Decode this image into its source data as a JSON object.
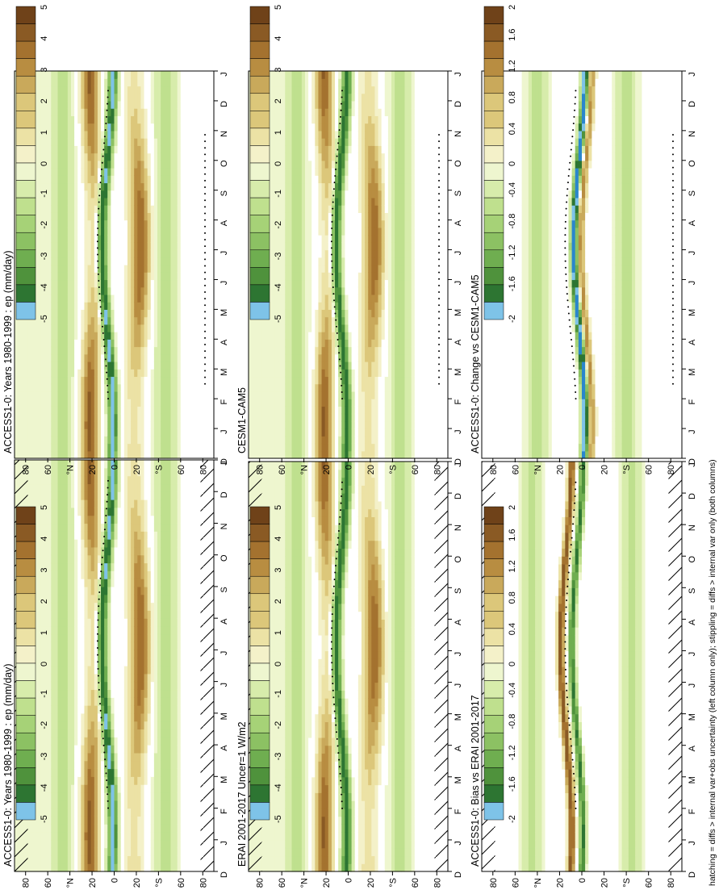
{
  "figure": {
    "footnote": "hatching = diffs > internal var+obs uncertainty (left column only); stippling = diffs > internal var only (both columns)"
  },
  "colors": {
    "positive_ramp": [
      "#f4f1c9",
      "#ece2a5",
      "#dcc77a",
      "#c9a95b",
      "#b88d41",
      "#a4722f",
      "#8a5a24",
      "#6f4219"
    ],
    "negative_ramp": [
      "#eef6cf",
      "#d7ecab",
      "#bfe08e",
      "#a6d277",
      "#8cc163",
      "#6fae50",
      "#4f923c",
      "#2d7532",
      "#7ec3e8",
      "#2a86cc"
    ],
    "white": "#ffffff",
    "near_white": "#f5f6fb"
  },
  "chart_data": [
    {
      "id": "p1",
      "type": "heatmap",
      "title": "ACCESS1-0: Years 1980-1999 : ep (mm/day)",
      "x": [
        "D",
        "J",
        "F",
        "M",
        "A",
        "M",
        "J",
        "J",
        "A",
        "S",
        "O",
        "N",
        "D",
        "J"
      ],
      "y_ticks": [
        "80",
        "60",
        "°N",
        "20",
        "0",
        "20",
        "°S",
        "60",
        "80"
      ],
      "ylim": [
        -90,
        90
      ],
      "colorbar": {
        "labels": [
          "5",
          "4",
          "3",
          "2",
          "1",
          "0",
          "-1",
          "-2",
          "-3",
          "-4",
          "-5"
        ],
        "range": [
          -5,
          5
        ]
      },
      "hatching": true,
      "stippling": true,
      "scale": 1
    },
    {
      "id": "p2",
      "type": "heatmap",
      "title": "ACCESS1-0: Years 1980-1999 : ep (mm/day)",
      "x": [
        "D",
        "J",
        "F",
        "M",
        "A",
        "M",
        "J",
        "J",
        "A",
        "S",
        "O",
        "N",
        "D",
        "J"
      ],
      "y_ticks": [
        "80",
        "60",
        "°N",
        "20",
        "0",
        "20",
        "°S",
        "60",
        "80"
      ],
      "ylim": [
        -90,
        90
      ],
      "colorbar": {
        "labels": [
          "5",
          "4",
          "3",
          "2",
          "1",
          "0",
          "-1",
          "-2",
          "-3",
          "-4",
          "-5"
        ],
        "range": [
          -5,
          5
        ]
      },
      "hatching": false,
      "stippling": true,
      "scale": 1
    },
    {
      "id": "p3",
      "type": "heatmap",
      "title": "ERAI 2001-2017 Uncer=1 W/m2",
      "x": [
        "D",
        "J",
        "F",
        "M",
        "A",
        "M",
        "J",
        "J",
        "A",
        "S",
        "O",
        "N",
        "D",
        "J"
      ],
      "y_ticks": [
        "80",
        "60",
        "°N",
        "20",
        "0",
        "20",
        "°S",
        "60",
        "80"
      ],
      "ylim": [
        -90,
        90
      ],
      "colorbar": {
        "labels": [
          "5",
          "4",
          "3",
          "2",
          "1",
          "0",
          "-1",
          "-2",
          "-3",
          "-4",
          "-5"
        ],
        "range": [
          -5,
          5
        ]
      },
      "hatching": true,
      "stippling": true,
      "scale": 1
    },
    {
      "id": "p4",
      "type": "heatmap",
      "title": "CESM1-CAM5",
      "x": [
        "D",
        "J",
        "F",
        "M",
        "A",
        "M",
        "J",
        "J",
        "A",
        "S",
        "O",
        "N",
        "D",
        "J"
      ],
      "y_ticks": [
        "80",
        "60",
        "°N",
        "20",
        "0",
        "20",
        "°S",
        "60",
        "80"
      ],
      "ylim": [
        -90,
        90
      ],
      "colorbar": {
        "labels": [
          "5",
          "4",
          "3",
          "2",
          "1",
          "0",
          "-1",
          "-2",
          "-3",
          "-4",
          "-5"
        ],
        "range": [
          -5,
          5
        ]
      },
      "hatching": false,
      "stippling": true,
      "scale": 1
    },
    {
      "id": "p5",
      "type": "heatmap",
      "title": "ACCESS1-0: Bias vs ERAI 2001-2017",
      "x": [
        "D",
        "J",
        "F",
        "M",
        "A",
        "M",
        "J",
        "J",
        "A",
        "S",
        "O",
        "N",
        "D",
        "J"
      ],
      "y_ticks": [
        "80",
        "60",
        "°N",
        "20",
        "0",
        "20",
        "°S",
        "60",
        "80"
      ],
      "ylim": [
        -90,
        90
      ],
      "colorbar": {
        "labels": [
          "2",
          "1.6",
          "1.2",
          "0.8",
          "0.4",
          "0",
          "-0.4",
          "-0.8",
          "-1.2",
          "-1.6",
          "-2"
        ],
        "range": [
          -2,
          2
        ]
      },
      "hatching": true,
      "stippling": true,
      "scale": 0.4
    },
    {
      "id": "p6",
      "type": "heatmap",
      "title": "ACCESS1-0: Change vs CESM1-CAM5",
      "x": [
        "D",
        "J",
        "F",
        "M",
        "A",
        "M",
        "J",
        "J",
        "A",
        "S",
        "O",
        "N",
        "D",
        "J"
      ],
      "y_ticks": [
        "80",
        "60",
        "°N",
        "20",
        "0",
        "20",
        "°S",
        "60",
        "80"
      ],
      "ylim": [
        -90,
        90
      ],
      "colorbar": {
        "labels": [
          "2",
          "1.6",
          "1.2",
          "0.8",
          "0.4",
          "0",
          "-0.4",
          "-0.8",
          "-1.2",
          "-1.6",
          "-2"
        ],
        "range": [
          -2,
          2
        ]
      },
      "hatching": false,
      "stippling": true,
      "scale": 0.4
    }
  ]
}
